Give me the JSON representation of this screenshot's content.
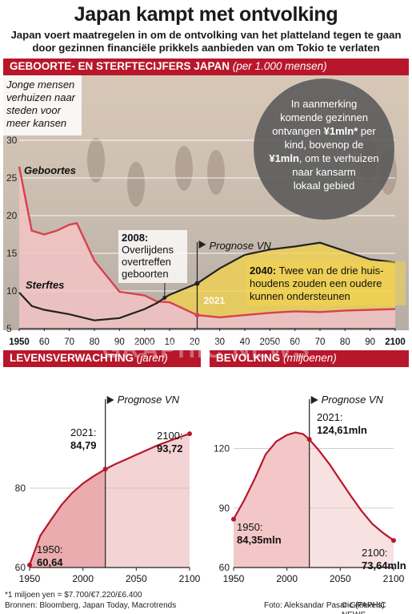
{
  "header": {
    "title": "Japan kampt met ontvolking",
    "subtitle_line1": "Japan voert maatregelen in om de ontvolking van het platteland tegen te gaan",
    "subtitle_line2": "door gezinnen financiële prikkels  aanbieden van om Tokio te verlaten"
  },
  "colors": {
    "accent": "#b8172b",
    "births_line": "#d9404f",
    "births_fill": "#f2c4c4",
    "deaths_line": "#222222",
    "overlay_fill": "#f3d34a",
    "life_fill": "#e9a8ab",
    "callout_bg": "#5b5b5b"
  },
  "chart_data": [
    {
      "type": "line",
      "title": "GEBOORTE- EN STERFTECIJFERS JAPAN",
      "unit": "(per 1.000 mensen)",
      "x_ticks": [
        "1950",
        "60",
        "70",
        "80",
        "90",
        "2000",
        "10",
        "20",
        "30",
        "40",
        "2050",
        "60",
        "70",
        "80",
        "90",
        "2100"
      ],
      "x_range": [
        1950,
        2100
      ],
      "y_ticks": [
        "5",
        "10",
        "15",
        "20",
        "25",
        "30"
      ],
      "ylim": [
        5,
        30
      ],
      "series": [
        {
          "name": "Geboortes",
          "x": [
            1950,
            1955,
            1960,
            1965,
            1970,
            1973,
            1980,
            1990,
            2000,
            2005,
            2010,
            2021,
            2030,
            2040,
            2050,
            2060,
            2070,
            2080,
            2090,
            2100
          ],
          "values": [
            26.5,
            18.0,
            17.5,
            18.0,
            18.8,
            19.0,
            14.0,
            9.9,
            9.4,
            8.6,
            8.5,
            6.8,
            6.5,
            6.8,
            7.1,
            7.3,
            7.2,
            7.4,
            7.5,
            7.6
          ]
        },
        {
          "name": "Sterftes",
          "x": [
            1950,
            1955,
            1960,
            1970,
            1980,
            1990,
            2000,
            2005,
            2008,
            2010,
            2021,
            2030,
            2040,
            2050,
            2060,
            2070,
            2080,
            2090,
            2100
          ],
          "values": [
            9.8,
            8.0,
            7.5,
            6.9,
            6.1,
            6.4,
            7.6,
            8.4,
            9.1,
            9.5,
            11.0,
            13.0,
            14.8,
            15.5,
            15.9,
            16.4,
            15.3,
            14.2,
            13.8
          ]
        }
      ],
      "forecast_start": 2021,
      "forecast_label": "Prognose VN",
      "year_marker": "2021",
      "annotations": {
        "young_people": [
          "Jonge mensen",
          "verhuizen naar",
          "steden voor",
          "meer kansen"
        ],
        "crossover_year": "2008:",
        "crossover_text": [
          "Overlijdens",
          "overtreffen",
          "geboorten"
        ],
        "future_year": "2040:",
        "future_text": [
          "Twee van de drie huis-",
          "houdens zouden een oudere",
          "kunnen ondersteunen"
        ]
      },
      "callout": [
        "In aanmerking",
        "komende gezinnen",
        "ontvangen ¥1mln* per",
        "kind, bovenop de",
        "¥1mln, om te verhuizen",
        "naar kansarm",
        "lokaal gebied"
      ]
    },
    {
      "type": "area",
      "title": "LEVENSVERWACHTING",
      "unit": "(jaren)",
      "x_ticks": [
        "1950",
        "2000",
        "2050",
        "2100"
      ],
      "x_range": [
        1950,
        2100
      ],
      "y_ticks": [
        "60",
        "80"
      ],
      "ylim": [
        60,
        100
      ],
      "x": [
        1950,
        1960,
        1970,
        1980,
        1990,
        2000,
        2010,
        2021,
        2030,
        2040,
        2050,
        2060,
        2070,
        2080,
        2090,
        2100
      ],
      "values": [
        60.64,
        68.0,
        72.0,
        75.8,
        78.8,
        81.2,
        83.0,
        84.79,
        86.0,
        87.2,
        88.4,
        89.6,
        90.8,
        91.8,
        92.8,
        93.72
      ],
      "forecast_start": 2021,
      "forecast_label": "Prognose VN",
      "labels": {
        "start_year": "1950:",
        "start_value": "60,64",
        "mid_year": "2021:",
        "mid_value": "84,79",
        "end_year": "2100:",
        "end_value": "93,72"
      }
    },
    {
      "type": "area",
      "title": "BEVOLKING",
      "unit": "(miljoenen)",
      "x_ticks": [
        "1950",
        "2000",
        "2050",
        "2100"
      ],
      "x_range": [
        1950,
        2100
      ],
      "y_ticks": [
        "60",
        "90",
        "120"
      ],
      "ylim": [
        60,
        140
      ],
      "x": [
        1950,
        1960,
        1970,
        1980,
        1990,
        2000,
        2008,
        2015,
        2021,
        2030,
        2040,
        2050,
        2060,
        2070,
        2080,
        2090,
        2100
      ],
      "values": [
        84.35,
        94.0,
        105.0,
        117.0,
        123.5,
        126.8,
        128.1,
        127.3,
        124.61,
        119.0,
        112.0,
        104.0,
        96.0,
        88.5,
        82.0,
        77.5,
        73.64
      ],
      "forecast_start": 2021,
      "forecast_label": "Prognose VN",
      "labels": {
        "start_year": "1950:",
        "start_value": "84,35mln",
        "mid_year": "2021:",
        "mid_value": "124,61mln",
        "end_year": "2100:",
        "end_value": "73,64mln"
      }
    }
  ],
  "watermark": "GRAPHIC NEWS",
  "footer": {
    "note": "*1 miljoen yen = $7.700/€7.220/£6.400",
    "sources": "Bronnen: Bloomberg, Japan Today, Macrotrends",
    "photo": "Foto: Aleksandar Pasaric (Pexels)",
    "brand": "© GRAPHIC NEWS"
  }
}
